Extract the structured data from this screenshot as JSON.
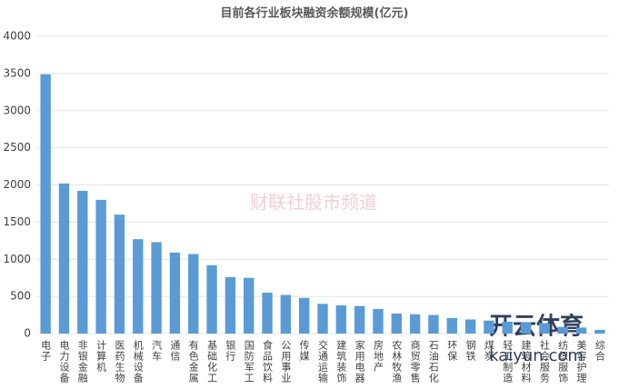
{
  "chart_data": {
    "type": "bar",
    "title": "目前各行业板块融资余额规模(亿元)",
    "categories": [
      "电子",
      "电力设备",
      "非银金融",
      "计算机",
      "医药生物",
      "机械设备",
      "汽车",
      "通信",
      "有色金属",
      "基础化工",
      "银行",
      "国防军工",
      "食品饮料",
      "公用事业",
      "传媒",
      "交通运输",
      "建筑装饰",
      "家用电器",
      "房地产",
      "农林牧渔",
      "商贸零售",
      "石油石化",
      "环保",
      "钢铁",
      "煤炭",
      "轻工制造",
      "建筑材料",
      "社会服务",
      "纺织服饰",
      "美容护理",
      "综合"
    ],
    "values": [
      3490,
      2020,
      1920,
      1800,
      1600,
      1270,
      1230,
      1090,
      1070,
      920,
      760,
      750,
      550,
      520,
      480,
      400,
      380,
      370,
      330,
      270,
      260,
      250,
      210,
      190,
      175,
      160,
      150,
      140,
      90,
      80,
      50
    ],
    "color": "#5b9bd5",
    "ylim": [
      0,
      4000
    ],
    "yticks": [
      0,
      500,
      1000,
      1500,
      2000,
      2500,
      3000,
      3500,
      4000
    ],
    "grid": true
  },
  "watermarks": [
    "财联社股市频道",
    "开云体育",
    "kaiyun.com"
  ]
}
